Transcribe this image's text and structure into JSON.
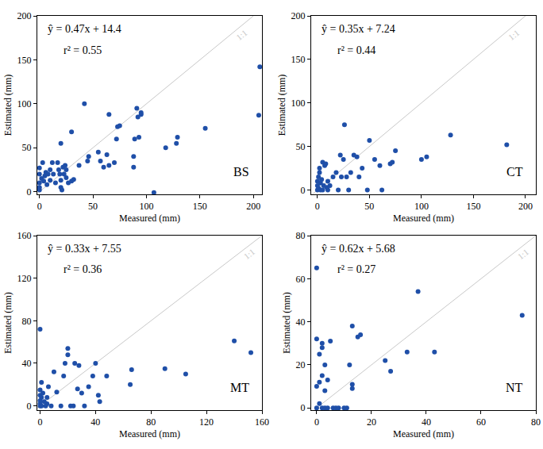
{
  "chart_data": [
    {
      "type": "scatter",
      "title": "BS",
      "x_label": "Measured (mm)",
      "y_label": "Estimated (mm)",
      "annotations": [
        "ŷ = 0.47x + 14.4",
        "r² = 0.55",
        "1:1"
      ],
      "color": "#1f4fa8",
      "marker": "circle",
      "x": [
        0,
        0,
        0,
        0,
        0,
        2,
        3,
        4,
        5,
        6,
        7,
        8,
        10,
        10,
        12,
        13,
        15,
        17,
        18,
        19,
        20,
        20,
        20,
        21,
        22,
        23,
        24,
        25,
        25,
        27,
        30,
        30,
        32,
        37,
        42,
        45,
        46,
        55,
        57,
        60,
        63,
        65,
        65,
        70,
        72,
        73,
        75,
        88,
        88,
        89,
        91,
        92,
        93,
        95,
        95,
        107,
        118,
        128,
        129,
        155,
        205,
        206
      ],
      "values": [
        27,
        20,
        10,
        5,
        2,
        15,
        33,
        12,
        18,
        22,
        8,
        20,
        13,
        25,
        33,
        20,
        10,
        33,
        25,
        20,
        55,
        13,
        5,
        2,
        28,
        20,
        30,
        25,
        16,
        10,
        12,
        68,
        14,
        30,
        100,
        35,
        40,
        45,
        35,
        28,
        42,
        88,
        30,
        33,
        60,
        74,
        75,
        28,
        40,
        60,
        95,
        85,
        62,
        88,
        90,
        -1,
        50,
        55,
        62,
        72,
        87,
        142
      ],
      "xlim": [
        -2,
        208
      ],
      "ylim": [
        -3,
        200
      ],
      "xticks": [
        0,
        50,
        100,
        150,
        200
      ],
      "yticks": [
        0,
        50,
        100,
        150,
        200
      ],
      "grid": false
    },
    {
      "type": "scatter",
      "title": "CT",
      "x_label": "Measured (mm)",
      "y_label": "Estimated (mm)",
      "annotations": [
        "ŷ = 0.35x + 7.24",
        "r² = 0.44",
        "1:1"
      ],
      "color": "#1f4fa8",
      "marker": "circle",
      "x": [
        0,
        0,
        0,
        1,
        1,
        2,
        2,
        3,
        3,
        4,
        5,
        5,
        6,
        7,
        8,
        9,
        10,
        10,
        12,
        15,
        18,
        20,
        22,
        23,
        25,
        26,
        28,
        30,
        32,
        35,
        38,
        40,
        43,
        48,
        50,
        55,
        60,
        62,
        70,
        72,
        75,
        100,
        105,
        128,
        182
      ],
      "values": [
        0,
        5,
        10,
        2,
        15,
        20,
        25,
        8,
        0,
        12,
        32,
        0,
        5,
        28,
        30,
        3,
        10,
        0,
        5,
        15,
        20,
        0,
        40,
        15,
        35,
        75,
        15,
        0,
        20,
        40,
        38,
        15,
        25,
        0,
        57,
        35,
        28,
        0,
        30,
        32,
        45,
        35,
        38,
        63,
        52
      ],
      "xlim": [
        -6,
        210
      ],
      "ylim": [
        -5,
        200
      ],
      "xticks": [
        0,
        50,
        100,
        150,
        200
      ],
      "yticks": [
        0,
        50,
        100,
        150,
        200
      ],
      "grid": false
    },
    {
      "type": "scatter",
      "title": "MT",
      "x_label": "Measured (mm)",
      "y_label": "Estimated (mm)",
      "annotations": [
        "ŷ = 0.33x + 7.55",
        "r² = 0.36",
        "1:1"
      ],
      "color": "#1f4fa8",
      "marker": "circle",
      "x": [
        0,
        0,
        0,
        0,
        0,
        0,
        1,
        1,
        1,
        2,
        3,
        4,
        5,
        5,
        6,
        8,
        10,
        12,
        15,
        17,
        18,
        20,
        20,
        22,
        24,
        25,
        27,
        28,
        30,
        32,
        35,
        38,
        40,
        42,
        43,
        48,
        65,
        66,
        90,
        105,
        140,
        152
      ],
      "values": [
        72,
        0,
        2,
        5,
        10,
        15,
        22,
        8,
        0,
        12,
        4,
        0,
        8,
        2,
        18,
        0,
        32,
        13,
        0,
        28,
        40,
        54,
        48,
        0,
        0,
        40,
        16,
        38,
        12,
        0,
        18,
        28,
        40,
        10,
        4,
        28,
        20,
        34,
        35,
        30,
        61,
        50
      ],
      "xlim": [
        -2,
        160
      ],
      "ylim": [
        -4,
        160
      ],
      "xticks": [
        0,
        40,
        80,
        120,
        160
      ],
      "yticks": [
        0,
        40,
        80,
        120,
        160
      ],
      "grid": false
    },
    {
      "type": "scatter",
      "title": "NT",
      "x_label": "Measured (mm)",
      "y_label": "Estimated (mm)",
      "annotations": [
        "ŷ = 0.62x + 5.68",
        "r² = 0.27",
        "1:1"
      ],
      "color": "#1f4fa8",
      "marker": "circle",
      "x": [
        0,
        0,
        0,
        0,
        1,
        1,
        1,
        2,
        2,
        2,
        2,
        3,
        3,
        3,
        4,
        4,
        5,
        6,
        7,
        8,
        10,
        11,
        12,
        13,
        13,
        13,
        15,
        16,
        25,
        27,
        33,
        37,
        43,
        75
      ],
      "values": [
        0,
        10,
        32,
        65,
        2,
        25,
        12,
        0,
        15,
        30,
        28,
        0,
        20,
        8,
        0,
        13,
        31,
        0,
        0,
        0,
        0,
        0,
        20,
        11,
        38,
        9,
        33,
        34,
        22,
        17,
        26,
        54,
        26,
        43
      ],
      "xlim": [
        -2,
        80
      ],
      "ylim": [
        -1,
        80
      ],
      "xticks": [
        0,
        20,
        40,
        60,
        80
      ],
      "yticks": [
        0,
        20,
        40,
        60,
        80
      ],
      "grid": false
    }
  ]
}
